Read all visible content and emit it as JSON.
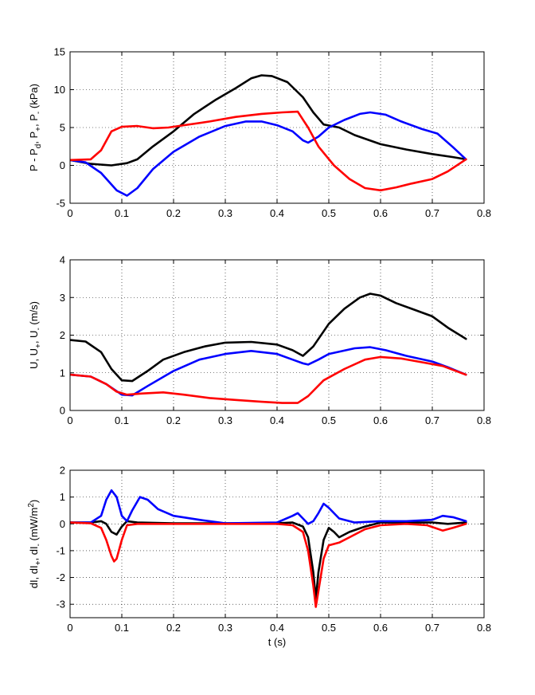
{
  "chart_data": [
    {
      "type": "line",
      "ylabel": "P - P_d, P_+, P_- (kPa)",
      "ylabel_parts": [
        "P - P",
        "d",
        ", P",
        "+",
        ", P",
        "-",
        " (kPa)"
      ],
      "xlabel": "",
      "xlim": [
        0,
        0.8
      ],
      "ylim": [
        -5,
        15
      ],
      "xticks": [
        "0",
        "0.1",
        "0.2",
        "0.3",
        "0.4",
        "0.5",
        "0.6",
        "0.7",
        "0.8"
      ],
      "yticks": [
        "-5",
        "0",
        "5",
        "10",
        "15"
      ],
      "grid": true,
      "series": [
        {
          "name": "P - Pd",
          "color": "#000000",
          "points": [
            [
              0,
              0.7
            ],
            [
              0.04,
              0.2
            ],
            [
              0.08,
              0
            ],
            [
              0.11,
              0.3
            ],
            [
              0.13,
              0.8
            ],
            [
              0.16,
              2.5
            ],
            [
              0.2,
              4.5
            ],
            [
              0.24,
              6.8
            ],
            [
              0.28,
              8.6
            ],
            [
              0.32,
              10.2
            ],
            [
              0.35,
              11.5
            ],
            [
              0.37,
              11.9
            ],
            [
              0.39,
              11.8
            ],
            [
              0.42,
              11
            ],
            [
              0.45,
              9
            ],
            [
              0.47,
              7
            ],
            [
              0.49,
              5.4
            ],
            [
              0.52,
              5
            ],
            [
              0.55,
              4
            ],
            [
              0.6,
              2.8
            ],
            [
              0.65,
              2.1
            ],
            [
              0.7,
              1.5
            ],
            [
              0.74,
              1.1
            ],
            [
              0.765,
              0.8
            ]
          ]
        },
        {
          "name": "P+",
          "color": "#0000ff",
          "points": [
            [
              0,
              0.7
            ],
            [
              0.03,
              0.4
            ],
            [
              0.06,
              -1
            ],
            [
              0.09,
              -3.3
            ],
            [
              0.11,
              -4
            ],
            [
              0.13,
              -3
            ],
            [
              0.16,
              -0.5
            ],
            [
              0.2,
              1.8
            ],
            [
              0.25,
              3.8
            ],
            [
              0.3,
              5.2
            ],
            [
              0.34,
              5.8
            ],
            [
              0.37,
              5.8
            ],
            [
              0.4,
              5.3
            ],
            [
              0.43,
              4.5
            ],
            [
              0.45,
              3.3
            ],
            [
              0.46,
              3
            ],
            [
              0.48,
              3.8
            ],
            [
              0.5,
              5
            ],
            [
              0.53,
              6
            ],
            [
              0.56,
              6.8
            ],
            [
              0.58,
              7
            ],
            [
              0.61,
              6.7
            ],
            [
              0.64,
              5.8
            ],
            [
              0.68,
              4.8
            ],
            [
              0.71,
              4.2
            ],
            [
              0.74,
              2.4
            ],
            [
              0.765,
              0.8
            ]
          ]
        },
        {
          "name": "P-",
          "color": "#ff0000",
          "points": [
            [
              0,
              0.7
            ],
            [
              0.04,
              0.8
            ],
            [
              0.06,
              2
            ],
            [
              0.08,
              4.5
            ],
            [
              0.1,
              5.1
            ],
            [
              0.13,
              5.2
            ],
            [
              0.16,
              4.9
            ],
            [
              0.19,
              5
            ],
            [
              0.22,
              5.3
            ],
            [
              0.27,
              5.8
            ],
            [
              0.32,
              6.4
            ],
            [
              0.37,
              6.8
            ],
            [
              0.41,
              7
            ],
            [
              0.44,
              7.1
            ],
            [
              0.46,
              5
            ],
            [
              0.48,
              2.5
            ],
            [
              0.51,
              0
            ],
            [
              0.54,
              -1.8
            ],
            [
              0.57,
              -3
            ],
            [
              0.6,
              -3.3
            ],
            [
              0.63,
              -2.9
            ],
            [
              0.66,
              -2.4
            ],
            [
              0.7,
              -1.8
            ],
            [
              0.73,
              -0.8
            ],
            [
              0.765,
              0.8
            ]
          ]
        }
      ]
    },
    {
      "type": "line",
      "ylabel": "U, U_+, U_- (m/s)",
      "ylabel_parts": [
        "U, U",
        "+",
        ", U",
        "-",
        " (m/s)"
      ],
      "xlabel": "",
      "xlim": [
        0,
        0.8
      ],
      "ylim": [
        0,
        4
      ],
      "xticks": [
        "0",
        "0.1",
        "0.2",
        "0.3",
        "0.4",
        "0.5",
        "0.6",
        "0.7",
        "0.8"
      ],
      "yticks": [
        "0",
        "1",
        "2",
        "3",
        "4"
      ],
      "grid": true,
      "series": [
        {
          "name": "U",
          "color": "#000000",
          "points": [
            [
              0,
              1.87
            ],
            [
              0.03,
              1.83
            ],
            [
              0.06,
              1.55
            ],
            [
              0.08,
              1.1
            ],
            [
              0.1,
              0.8
            ],
            [
              0.12,
              0.78
            ],
            [
              0.15,
              1.05
            ],
            [
              0.18,
              1.35
            ],
            [
              0.22,
              1.55
            ],
            [
              0.26,
              1.7
            ],
            [
              0.3,
              1.8
            ],
            [
              0.35,
              1.82
            ],
            [
              0.4,
              1.75
            ],
            [
              0.43,
              1.6
            ],
            [
              0.45,
              1.45
            ],
            [
              0.47,
              1.7
            ],
            [
              0.5,
              2.3
            ],
            [
              0.53,
              2.7
            ],
            [
              0.56,
              3
            ],
            [
              0.58,
              3.1
            ],
            [
              0.6,
              3.05
            ],
            [
              0.63,
              2.85
            ],
            [
              0.66,
              2.7
            ],
            [
              0.7,
              2.5
            ],
            [
              0.73,
              2.2
            ],
            [
              0.765,
              1.9
            ]
          ]
        },
        {
          "name": "U+",
          "color": "#0000ff",
          "points": [
            [
              0,
              0.95
            ],
            [
              0.04,
              0.9
            ],
            [
              0.07,
              0.7
            ],
            [
              0.1,
              0.42
            ],
            [
              0.12,
              0.4
            ],
            [
              0.15,
              0.65
            ],
            [
              0.2,
              1.05
            ],
            [
              0.25,
              1.35
            ],
            [
              0.3,
              1.5
            ],
            [
              0.35,
              1.58
            ],
            [
              0.4,
              1.5
            ],
            [
              0.43,
              1.35
            ],
            [
              0.45,
              1.25
            ],
            [
              0.46,
              1.22
            ],
            [
              0.48,
              1.35
            ],
            [
              0.5,
              1.5
            ],
            [
              0.55,
              1.65
            ],
            [
              0.58,
              1.68
            ],
            [
              0.61,
              1.6
            ],
            [
              0.65,
              1.45
            ],
            [
              0.7,
              1.3
            ],
            [
              0.73,
              1.15
            ],
            [
              0.765,
              0.95
            ]
          ]
        },
        {
          "name": "U-",
          "color": "#ff0000",
          "points": [
            [
              0,
              0.95
            ],
            [
              0.04,
              0.9
            ],
            [
              0.07,
              0.7
            ],
            [
              0.09,
              0.5
            ],
            [
              0.11,
              0.42
            ],
            [
              0.14,
              0.45
            ],
            [
              0.18,
              0.48
            ],
            [
              0.22,
              0.42
            ],
            [
              0.27,
              0.33
            ],
            [
              0.32,
              0.28
            ],
            [
              0.37,
              0.23
            ],
            [
              0.41,
              0.2
            ],
            [
              0.44,
              0.2
            ],
            [
              0.46,
              0.38
            ],
            [
              0.49,
              0.8
            ],
            [
              0.53,
              1.1
            ],
            [
              0.57,
              1.35
            ],
            [
              0.6,
              1.42
            ],
            [
              0.64,
              1.38
            ],
            [
              0.68,
              1.28
            ],
            [
              0.72,
              1.18
            ],
            [
              0.765,
              0.95
            ]
          ]
        }
      ]
    },
    {
      "type": "line",
      "ylabel": "dI, dI_+, dI_- (mW/m^2)",
      "ylabel_parts": [
        "dI, dI",
        "+",
        ", dI",
        "-",
        " (mW/m",
        "2",
        ")"
      ],
      "xlabel": "t (s)",
      "xlim": [
        0,
        0.8
      ],
      "ylim": [
        -3.5,
        2
      ],
      "xticks": [
        "0",
        "0.1",
        "0.2",
        "0.3",
        "0.4",
        "0.5",
        "0.6",
        "0.7",
        "0.8"
      ],
      "yticks": [
        "-3",
        "-2",
        "-1",
        "0",
        "1",
        "2"
      ],
      "grid": true,
      "series": [
        {
          "name": "dI",
          "color": "#000000",
          "points": [
            [
              0,
              0.05
            ],
            [
              0.04,
              0.05
            ],
            [
              0.06,
              0.1
            ],
            [
              0.07,
              0
            ],
            [
              0.08,
              -0.3
            ],
            [
              0.09,
              -0.4
            ],
            [
              0.1,
              -0.1
            ],
            [
              0.11,
              0.1
            ],
            [
              0.13,
              0.05
            ],
            [
              0.2,
              0.02
            ],
            [
              0.3,
              0.02
            ],
            [
              0.4,
              0.02
            ],
            [
              0.43,
              0.05
            ],
            [
              0.45,
              -0.1
            ],
            [
              0.46,
              -0.5
            ],
            [
              0.47,
              -1.8
            ],
            [
              0.475,
              -2.8
            ],
            [
              0.48,
              -1.8
            ],
            [
              0.49,
              -0.6
            ],
            [
              0.5,
              -0.15
            ],
            [
              0.51,
              -0.3
            ],
            [
              0.52,
              -0.5
            ],
            [
              0.54,
              -0.3
            ],
            [
              0.57,
              -0.1
            ],
            [
              0.6,
              0.05
            ],
            [
              0.65,
              0.05
            ],
            [
              0.7,
              0.05
            ],
            [
              0.73,
              0
            ],
            [
              0.765,
              0.05
            ]
          ]
        },
        {
          "name": "dI+",
          "color": "#0000ff",
          "points": [
            [
              0,
              0.05
            ],
            [
              0.04,
              0.05
            ],
            [
              0.06,
              0.3
            ],
            [
              0.07,
              0.9
            ],
            [
              0.08,
              1.25
            ],
            [
              0.09,
              1
            ],
            [
              0.1,
              0.3
            ],
            [
              0.11,
              0.1
            ],
            [
              0.12,
              0.5
            ],
            [
              0.135,
              1
            ],
            [
              0.15,
              0.9
            ],
            [
              0.17,
              0.55
            ],
            [
              0.2,
              0.3
            ],
            [
              0.25,
              0.15
            ],
            [
              0.3,
              0.02
            ],
            [
              0.4,
              0.05
            ],
            [
              0.43,
              0.3
            ],
            [
              0.44,
              0.4
            ],
            [
              0.45,
              0.2
            ],
            [
              0.46,
              0
            ],
            [
              0.47,
              0.1
            ],
            [
              0.48,
              0.4
            ],
            [
              0.49,
              0.75
            ],
            [
              0.5,
              0.6
            ],
            [
              0.52,
              0.2
            ],
            [
              0.55,
              0.05
            ],
            [
              0.6,
              0.1
            ],
            [
              0.65,
              0.1
            ],
            [
              0.7,
              0.15
            ],
            [
              0.72,
              0.3
            ],
            [
              0.74,
              0.25
            ],
            [
              0.765,
              0.1
            ]
          ]
        },
        {
          "name": "dI-",
          "color": "#ff0000",
          "points": [
            [
              0,
              0.05
            ],
            [
              0.04,
              0.02
            ],
            [
              0.06,
              -0.15
            ],
            [
              0.07,
              -0.6
            ],
            [
              0.08,
              -1.2
            ],
            [
              0.085,
              -1.4
            ],
            [
              0.09,
              -1.3
            ],
            [
              0.1,
              -0.6
            ],
            [
              0.11,
              -0.05
            ],
            [
              0.13,
              0
            ],
            [
              0.2,
              0
            ],
            [
              0.3,
              0
            ],
            [
              0.4,
              0
            ],
            [
              0.43,
              -0.05
            ],
            [
              0.45,
              -0.3
            ],
            [
              0.46,
              -1
            ],
            [
              0.47,
              -2.3
            ],
            [
              0.475,
              -3.1
            ],
            [
              0.48,
              -2.5
            ],
            [
              0.49,
              -1.3
            ],
            [
              0.5,
              -0.8
            ],
            [
              0.52,
              -0.7
            ],
            [
              0.54,
              -0.5
            ],
            [
              0.57,
              -0.2
            ],
            [
              0.6,
              -0.05
            ],
            [
              0.65,
              0
            ],
            [
              0.69,
              -0.05
            ],
            [
              0.72,
              -0.25
            ],
            [
              0.74,
              -0.15
            ],
            [
              0.765,
              0
            ]
          ]
        }
      ]
    }
  ]
}
